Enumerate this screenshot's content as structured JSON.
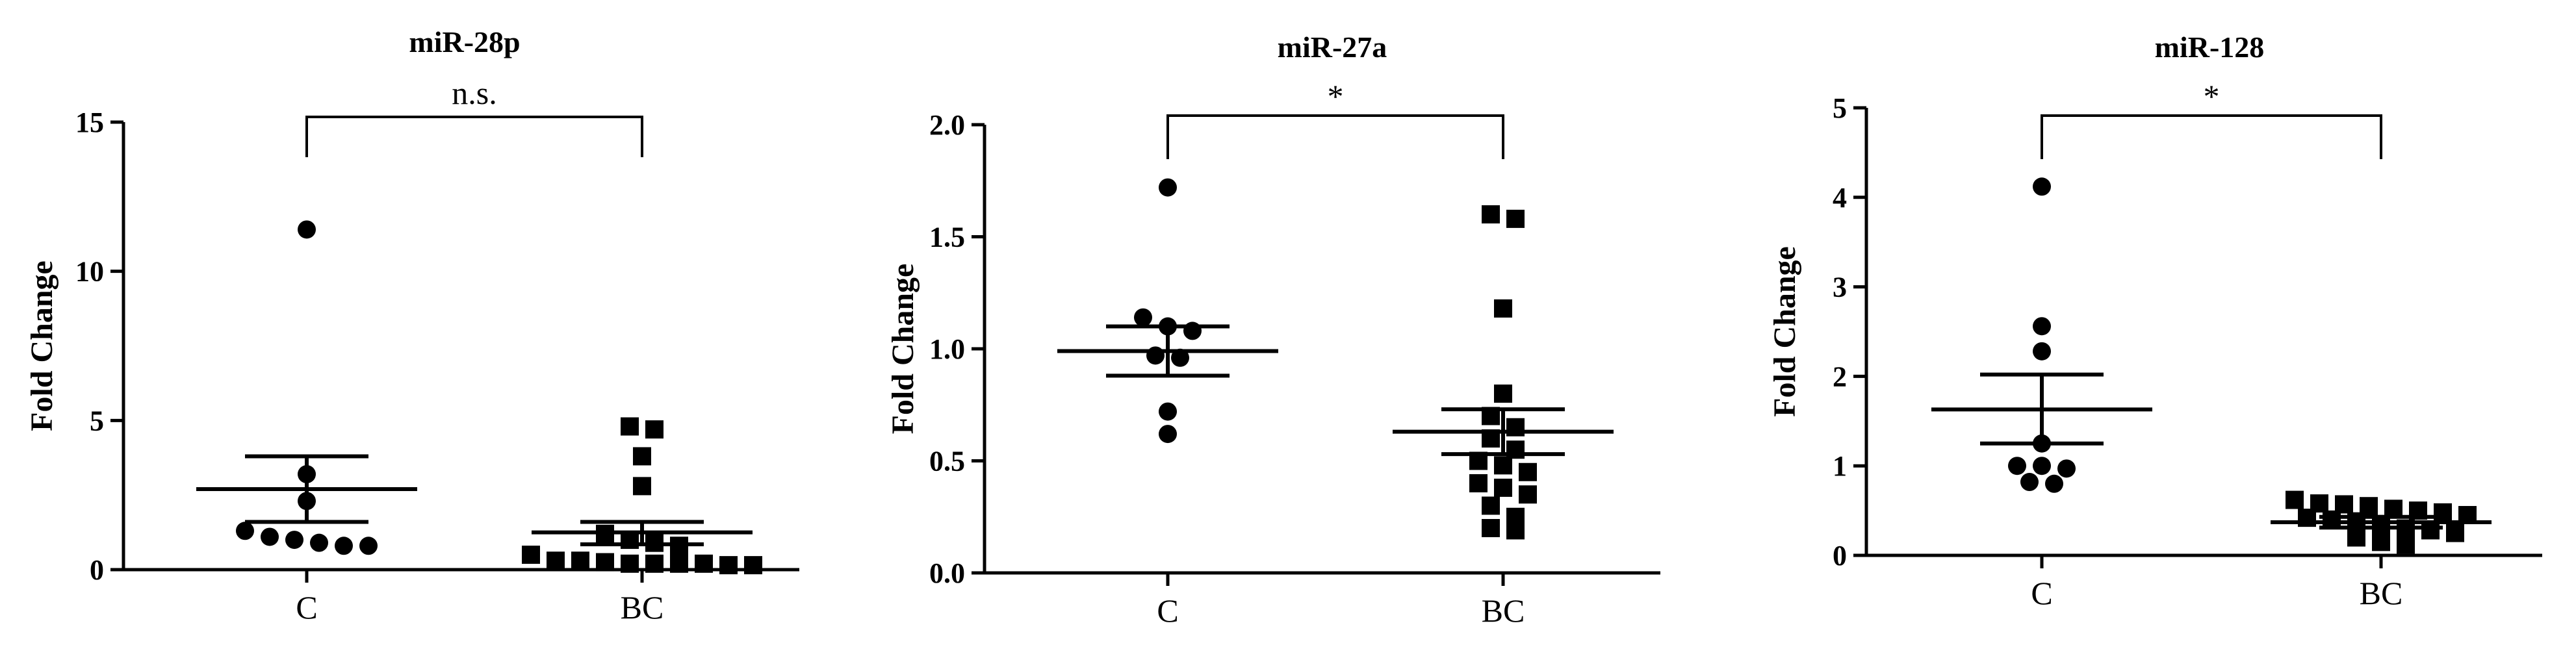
{
  "chart_data": [
    {
      "type": "scatter",
      "title": "miR-28p",
      "ylabel": "Fold Change",
      "categories": [
        "C",
        "BC"
      ],
      "ylim": [
        0,
        15
      ],
      "yticks": [
        0,
        5,
        10,
        15
      ],
      "significance": "n.s.",
      "series": [
        {
          "category": "C",
          "marker": "circle",
          "values": [
            11.4,
            3.2,
            2.3,
            1.3,
            1.1,
            1.0,
            0.9,
            0.8,
            0.8
          ],
          "mean": 2.7,
          "sem_low": 1.6,
          "sem_high": 3.8
        },
        {
          "category": "BC",
          "marker": "square",
          "values": [
            4.8,
            4.7,
            3.8,
            2.8,
            1.2,
            1.0,
            0.9,
            0.8,
            0.5,
            0.3,
            0.3,
            0.25,
            0.2,
            0.2,
            0.2,
            0.2,
            0.15,
            0.15
          ],
          "mean": 1.25,
          "sem_low": 0.85,
          "sem_high": 1.6
        }
      ]
    },
    {
      "type": "scatter",
      "title": "miR-27a",
      "ylabel": "Fold Change",
      "categories": [
        "C",
        "BC"
      ],
      "ylim": [
        0,
        2.0
      ],
      "yticks": [
        "0.0",
        "0.5",
        "1.0",
        "1.5",
        "2.0"
      ],
      "significance": "*",
      "series": [
        {
          "category": "C",
          "marker": "circle",
          "values": [
            1.72,
            1.14,
            1.1,
            1.08,
            0.97,
            0.96,
            0.72,
            0.62
          ],
          "mean": 0.99,
          "sem_low": 0.88,
          "sem_high": 1.1
        },
        {
          "category": "BC",
          "marker": "square",
          "values": [
            1.6,
            1.58,
            1.18,
            0.8,
            0.7,
            0.65,
            0.6,
            0.55,
            0.5,
            0.48,
            0.45,
            0.4,
            0.38,
            0.35,
            0.3,
            0.25,
            0.2,
            0.19
          ],
          "mean": 0.63,
          "sem_low": 0.53,
          "sem_high": 0.73
        }
      ]
    },
    {
      "type": "scatter",
      "title": "miR-128",
      "ylabel": "Fold Change",
      "categories": [
        "C",
        "BC"
      ],
      "ylim": [
        0,
        5
      ],
      "yticks": [
        0,
        1,
        2,
        3,
        4,
        5
      ],
      "significance": "*",
      "series": [
        {
          "category": "C",
          "marker": "circle",
          "values": [
            4.12,
            2.56,
            2.28,
            1.25,
            1.0,
            1.0,
            0.97,
            0.82,
            0.8
          ],
          "mean": 1.63,
          "sem_low": 1.25,
          "sem_high": 2.02
        },
        {
          "category": "BC",
          "marker": "square",
          "values": [
            0.62,
            0.58,
            0.57,
            0.55,
            0.52,
            0.5,
            0.48,
            0.45,
            0.42,
            0.4,
            0.38,
            0.35,
            0.3,
            0.28,
            0.25,
            0.2,
            0.15,
            0.12
          ],
          "mean": 0.37,
          "sem_low": 0.31,
          "sem_high": 0.43
        }
      ]
    }
  ]
}
